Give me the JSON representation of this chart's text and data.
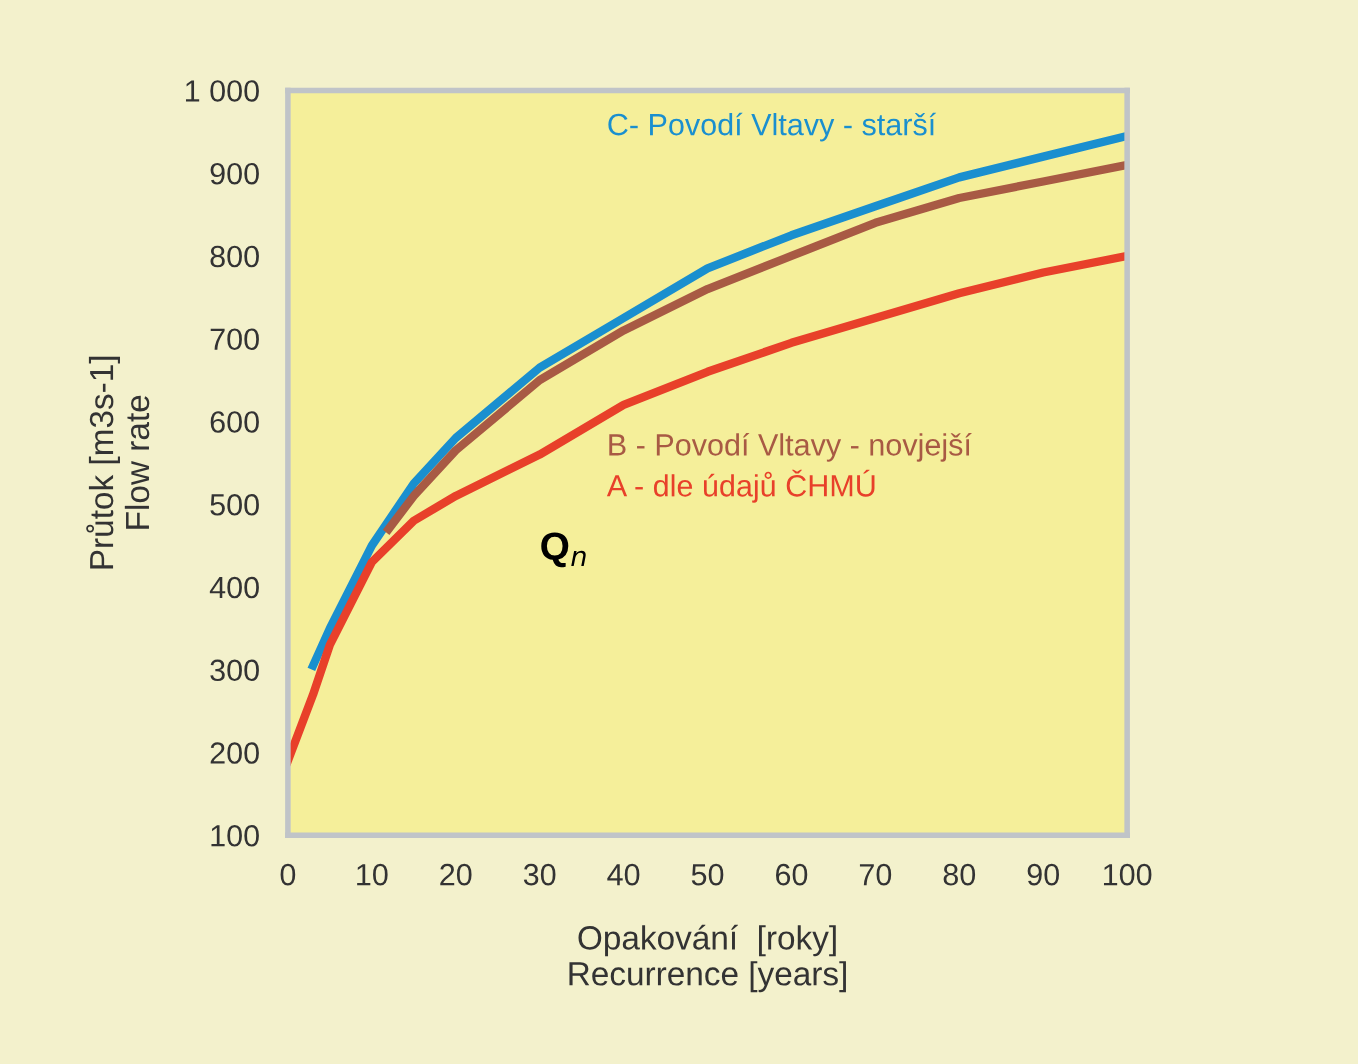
{
  "chart_data": {
    "type": "line",
    "xlabel": "Opakování  [roky]\nRecurrence [years]",
    "ylabel": "Průtok [m3s-1]\nFlow rate",
    "series": [
      {
        "name": "C- Povodí Vltavy - starší",
        "color": "#1a8fcf",
        "x": [
          3,
          5,
          10,
          15,
          20,
          30,
          40,
          50,
          60,
          70,
          80,
          90,
          100
        ],
        "values": [
          305,
          350,
          450,
          525,
          580,
          665,
          725,
          785,
          825,
          860,
          895,
          920,
          945
        ]
      },
      {
        "name": "B - Povodí Vltavy - novjejší",
        "color": "#a85a44",
        "x": [
          12,
          15,
          20,
          30,
          40,
          50,
          60,
          70,
          80,
          90,
          100
        ],
        "values": [
          470,
          510,
          565,
          650,
          710,
          760,
          800,
          840,
          870,
          890,
          910
        ]
      },
      {
        "name": "A - dle údajů ČHMÚ",
        "color": "#e8402a",
        "x": [
          0,
          3,
          5,
          10,
          15,
          20,
          30,
          40,
          50,
          60,
          70,
          80,
          90,
          100
        ],
        "values": [
          190,
          270,
          330,
          430,
          480,
          510,
          560,
          620,
          660,
          695,
          725,
          755,
          780,
          800
        ]
      }
    ],
    "annotations": [
      "Q$_{n}$"
    ],
    "xlim": [
      0,
      100
    ],
    "xticks": [
      0,
      10,
      20,
      30,
      40,
      50,
      60,
      70,
      80,
      90,
      100
    ],
    "ylim": [
      100,
      1000
    ],
    "yticks": [
      100,
      200,
      300,
      400,
      500,
      600,
      700,
      800,
      900,
      {
        "value": 1000,
        "label": "1 000"
      }
    ],
    "grid": false,
    "legend": false,
    "marker": "none",
    "line_style": "solid"
  }
}
